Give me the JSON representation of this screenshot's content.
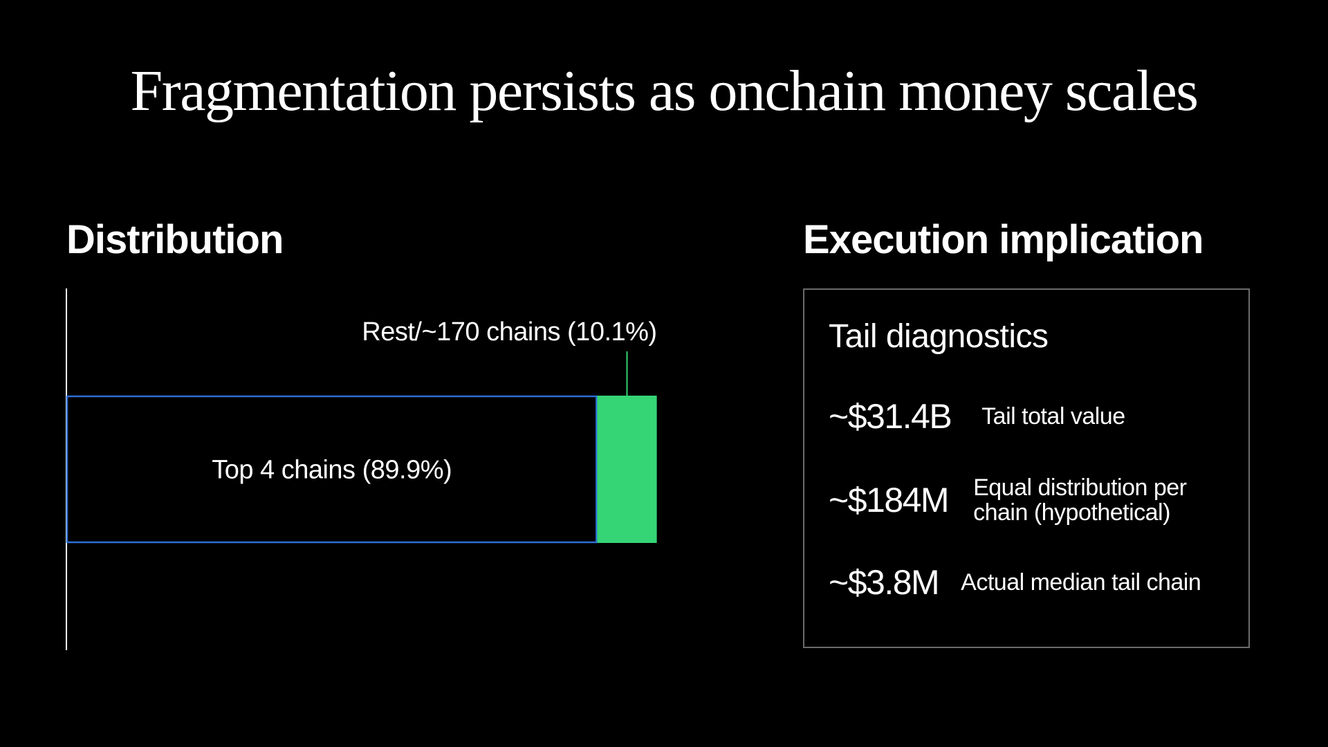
{
  "title": "Fragmentation persists as onchain money scales",
  "distribution": {
    "heading": "Distribution"
  },
  "execution": {
    "heading": "Execution implication",
    "panel_title": "Tail diagnostics",
    "metrics": [
      {
        "value": "~$31.4B",
        "label": "Tail total value"
      },
      {
        "value": "~$184M",
        "label": "Equal distribution per chain (hypothetical)"
      },
      {
        "value": "~$3.8M",
        "label": "Actual median tail chain"
      }
    ]
  },
  "colors": {
    "top_outline": "#2f6fd6",
    "rest_fill": "#35d475",
    "axis": "#ffffff",
    "panel_border": "#6b6b6b"
  },
  "chart_data": {
    "type": "bar",
    "orientation": "horizontal-stacked",
    "unit": "percent",
    "segments": [
      {
        "name": "Top 4 chains",
        "value": 89.9,
        "label": "Top 4 chains (89.9%)",
        "style": "outline"
      },
      {
        "name": "Rest/~170 chains",
        "value": 10.1,
        "label": "Rest/~170 chains (10.1%)",
        "style": "fill"
      }
    ],
    "xlim": [
      0,
      100
    ],
    "grid": false,
    "legend": "none"
  }
}
